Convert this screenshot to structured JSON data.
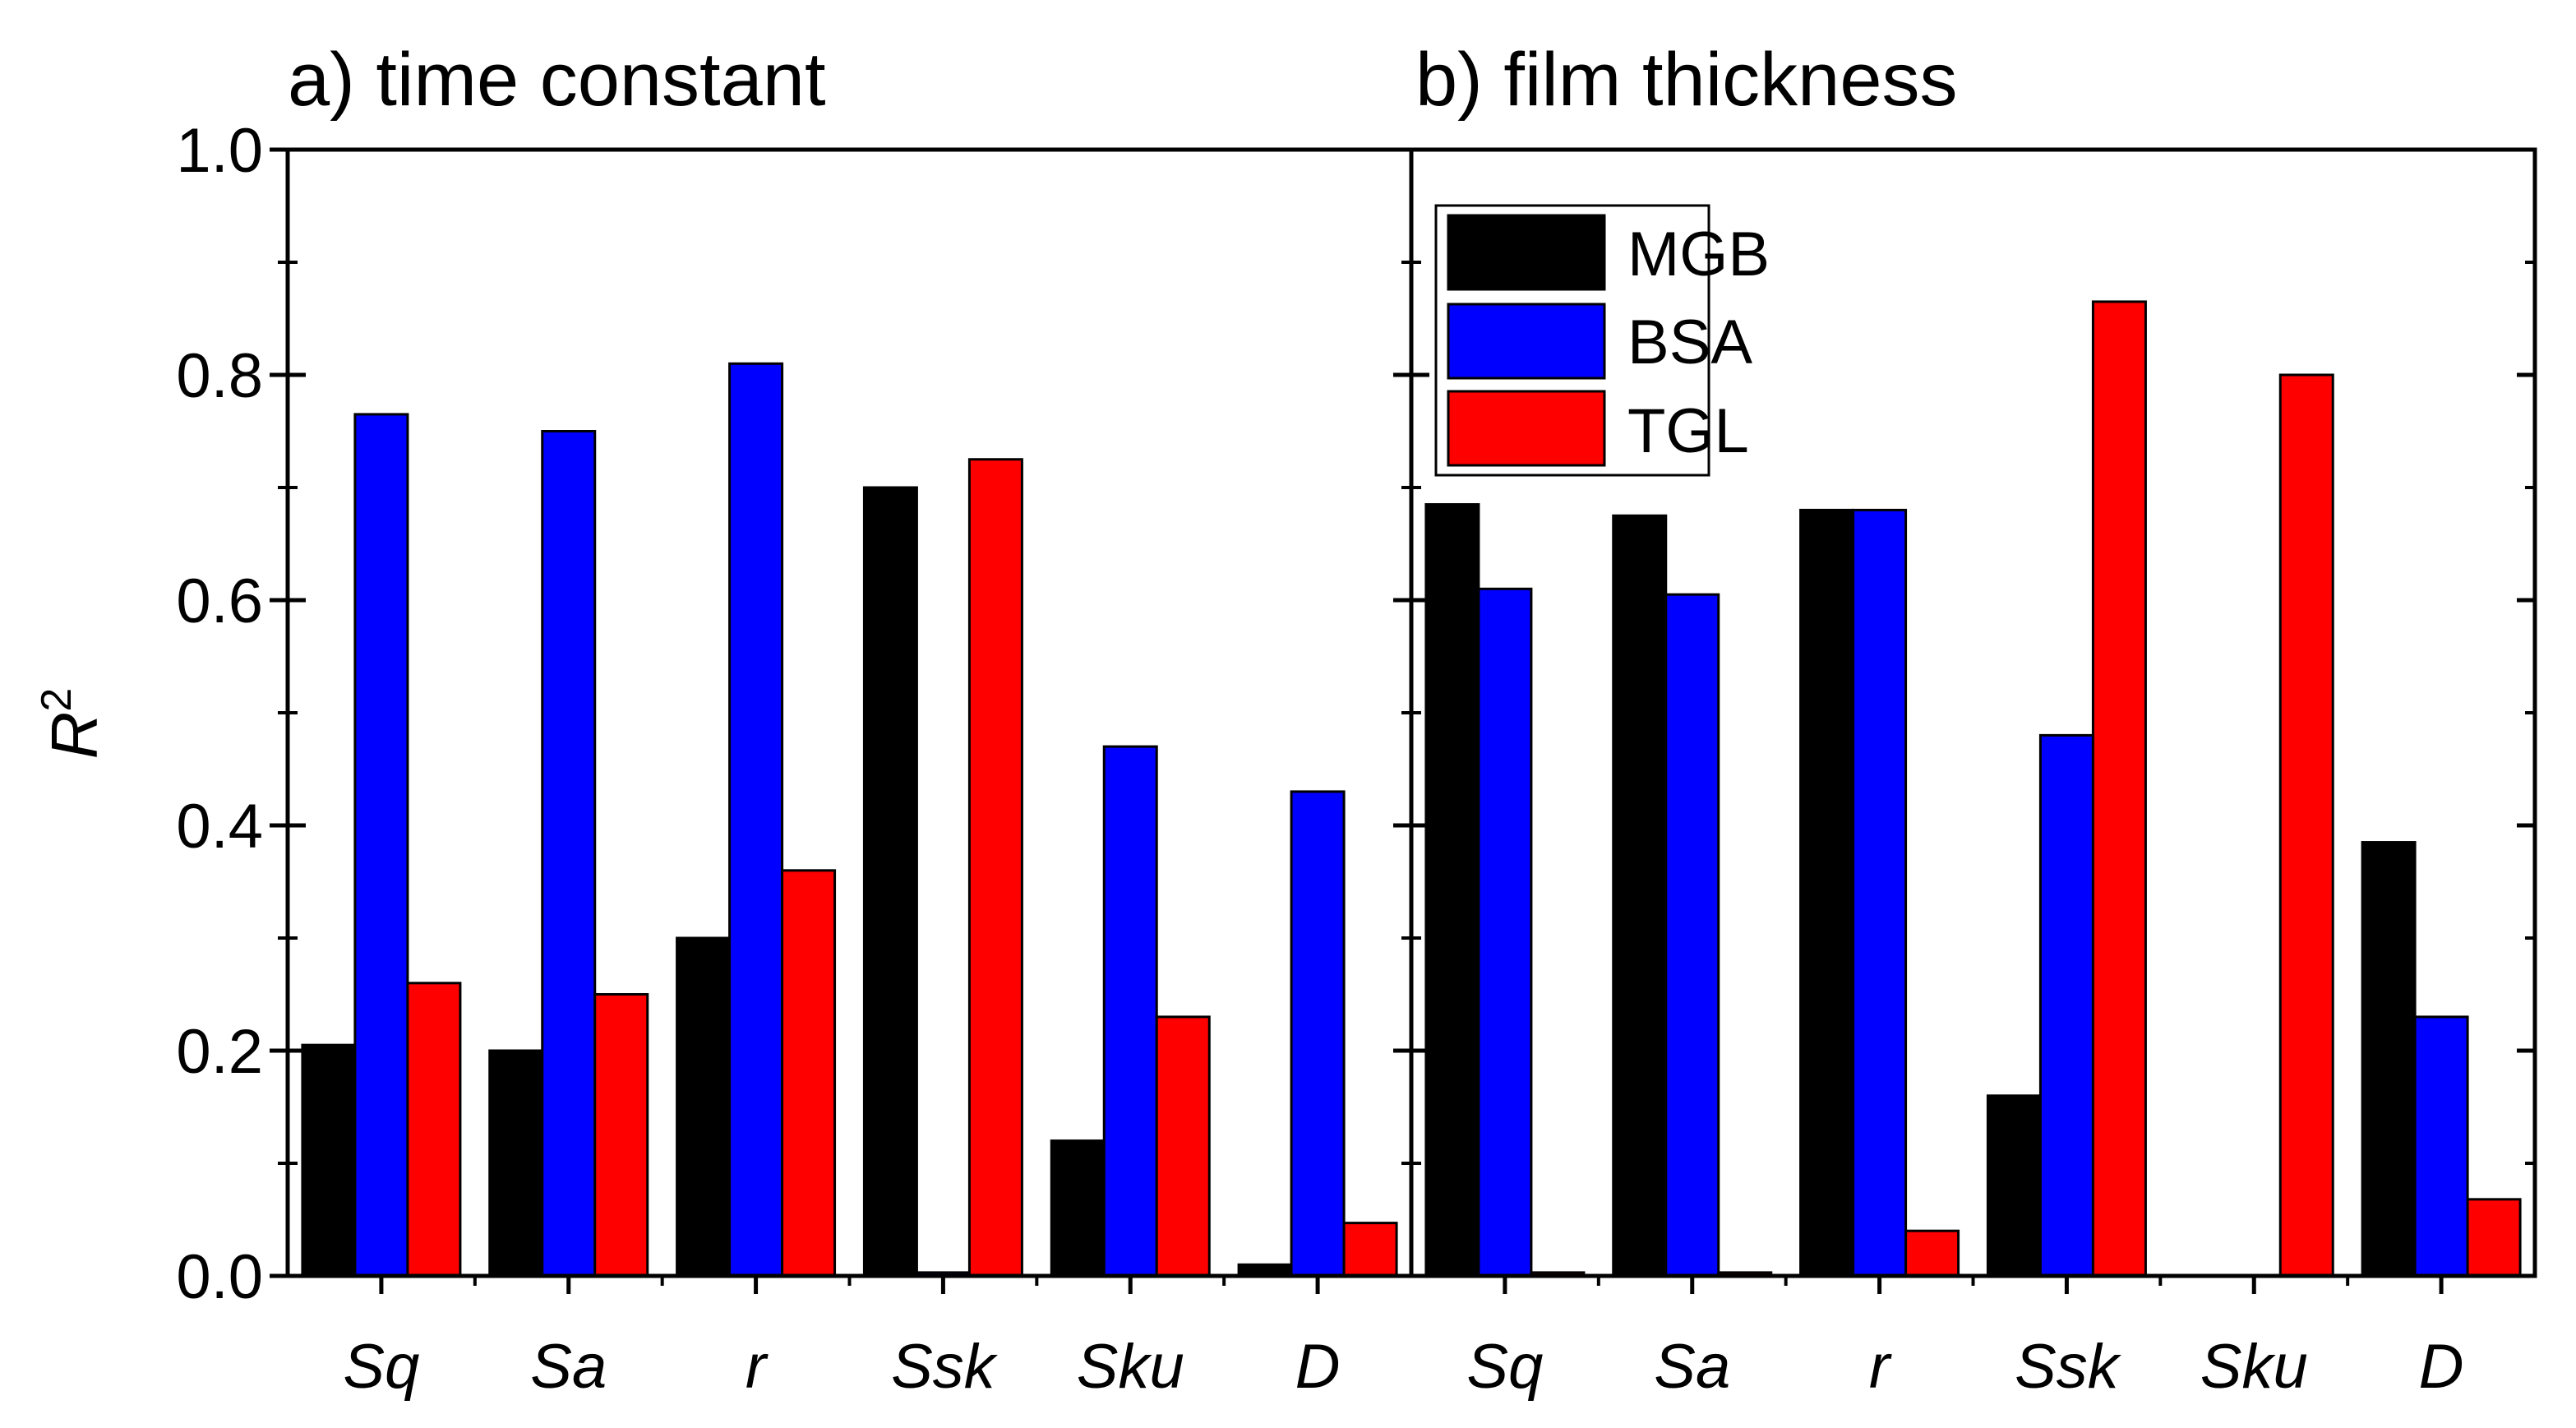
{
  "chart_data": {
    "type": "bar",
    "ylabel": "R",
    "ylabel_superscript": "2",
    "ylim": [
      0,
      1.0
    ],
    "yticks": [
      "0.0",
      "0.2",
      "0.4",
      "0.6",
      "0.8",
      "1.0"
    ],
    "legend": {
      "placement": "top-left of panel b",
      "entries": [
        "MGB",
        "BSA",
        "TGL"
      ]
    },
    "series_colors": {
      "MGB": "#000000",
      "BSA": "#0000ff",
      "TGL": "#ff0000"
    },
    "panels": [
      {
        "title": "a) time constant",
        "categories": [
          "Sq",
          "Sa",
          "r",
          "Ssk",
          "Sku",
          "D"
        ],
        "series": [
          {
            "name": "MGB",
            "values": [
              0.205,
              0.2,
              0.3,
              0.7,
              0.12,
              0.01
            ]
          },
          {
            "name": "BSA",
            "values": [
              0.765,
              0.75,
              0.81,
              0.003,
              0.47,
              0.43
            ]
          },
          {
            "name": "TGL",
            "values": [
              0.26,
              0.25,
              0.36,
              0.725,
              0.23,
              0.047
            ]
          }
        ]
      },
      {
        "title": "b) film thickness",
        "categories": [
          "Sq",
          "Sa",
          "r",
          "Ssk",
          "Sku",
          "D"
        ],
        "series": [
          {
            "name": "MGB",
            "values": [
              0.685,
              0.675,
              0.68,
              0.16,
              0.0,
              0.385
            ]
          },
          {
            "name": "BSA",
            "values": [
              0.61,
              0.605,
              0.68,
              0.48,
              0.0,
              0.23
            ]
          },
          {
            "name": "TGL",
            "values": [
              0.003,
              0.003,
              0.04,
              0.865,
              0.8,
              0.068
            ]
          }
        ]
      }
    ]
  }
}
